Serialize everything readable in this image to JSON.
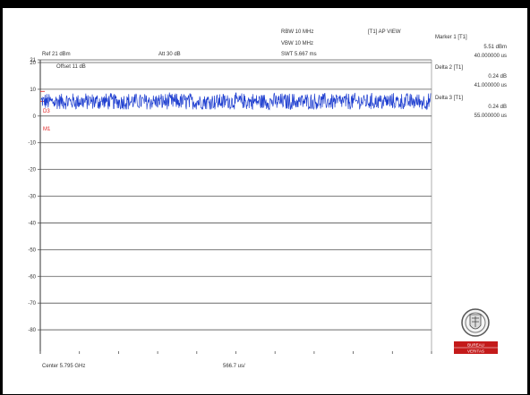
{
  "header": {
    "rbw": "RBW 10 MHz",
    "vbw": "VBW 10 MHz",
    "swt": "SWT 5.667 ms",
    "trace_mode": "[T1] AP VIEW",
    "ref": "Ref 21 dBm",
    "att": "Att  30 dB",
    "offset": "Offset 11 dB"
  },
  "markers": [
    {
      "title": "Marker 1 [T1]",
      "level": "5.51 dBm",
      "time": "40.000000 us"
    },
    {
      "title": "Delta 2 [T1]",
      "level": "0.24 dB",
      "time": "41.000000 us"
    },
    {
      "title": "Delta 3 [T1]",
      "level": "0.24 dB",
      "time": "55.000000 us"
    }
  ],
  "marker_labels": {
    "d3": "D3",
    "m1": "M1"
  },
  "footer": {
    "center": "Center 5.795 GHz",
    "span": "566.7 us/"
  },
  "logo": {
    "line1": "BUREAU",
    "line2": "VERITAS"
  },
  "chart_data": {
    "type": "line",
    "title": "",
    "xlabel": "",
    "ylabel": "",
    "ylim": [
      -89,
      21
    ],
    "xlim_divisions": 10,
    "y_ticks": [
      {
        "value": 21,
        "label": "21"
      },
      {
        "value": 20,
        "label": "20"
      },
      {
        "value": 10,
        "label": "10"
      },
      {
        "value": 0,
        "label": "0"
      },
      {
        "value": -10,
        "label": "-10"
      },
      {
        "value": -20,
        "label": "-20"
      },
      {
        "value": -30,
        "label": "-30"
      },
      {
        "value": -40,
        "label": "-40"
      },
      {
        "value": -50,
        "label": "-50"
      },
      {
        "value": -60,
        "label": "-60"
      },
      {
        "value": -70,
        "label": "-70"
      },
      {
        "value": -80,
        "label": "-80"
      }
    ],
    "grid": true,
    "series": [
      {
        "color": "#1f3fd0",
        "mean_dbm": 5.4,
        "min_dbm": 2.5,
        "max_dbm": 9.5
      }
    ],
    "reference_lines": [
      {
        "value_dbm": 9.2,
        "color": "#e02020"
      },
      {
        "value_dbm": 5.5,
        "color": "#e02020"
      }
    ]
  }
}
